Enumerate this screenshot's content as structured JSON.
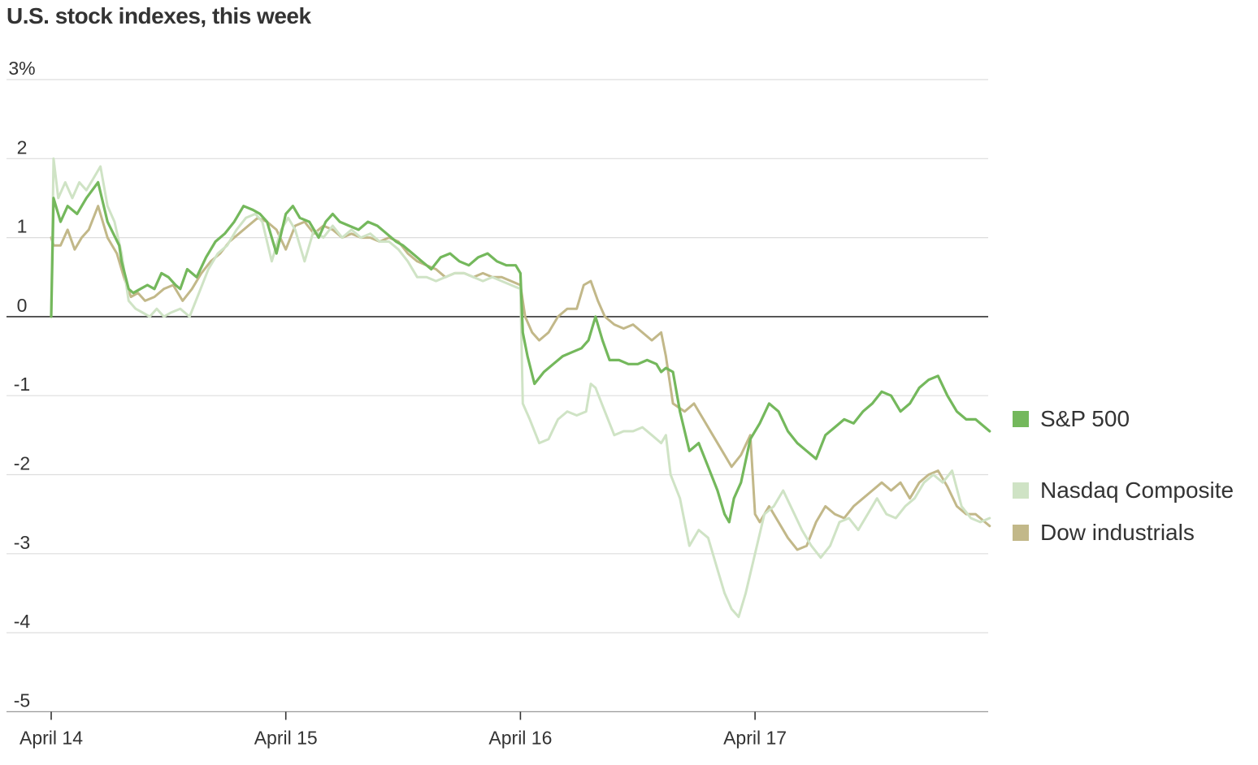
{
  "title": "U.S. stock indexes, this week",
  "chart_data": {
    "type": "line",
    "title": "U.S. stock indexes, this week",
    "xlabel": "",
    "ylabel": "",
    "ylim": [
      -5,
      3
    ],
    "yticks": [
      3,
      2,
      1,
      0,
      -1,
      -2,
      -3,
      -4,
      -5
    ],
    "ytick_labels": [
      "3%",
      "2",
      "1",
      "0",
      "-1",
      "-2",
      "-3",
      "-4",
      "-5"
    ],
    "xlim": [
      0,
      4
    ],
    "xticks": [
      0,
      1,
      2,
      3
    ],
    "xtick_labels": [
      "April 14",
      "April 15",
      "April 16",
      "April 17"
    ],
    "grid": true,
    "legend_position": "right",
    "series": [
      {
        "name": "S&P 500",
        "color": "#74b85c",
        "x": [
          0,
          0.01,
          0.04,
          0.07,
          0.11,
          0.15,
          0.2,
          0.24,
          0.29,
          0.3,
          0.33,
          0.35,
          0.38,
          0.41,
          0.44,
          0.47,
          0.5,
          0.53,
          0.55,
          0.58,
          0.62,
          0.66,
          0.7,
          0.74,
          0.78,
          0.82,
          0.86,
          0.89,
          0.92,
          0.96,
          1.0,
          1.03,
          1.06,
          1.1,
          1.14,
          1.17,
          1.2,
          1.23,
          1.27,
          1.31,
          1.35,
          1.39,
          1.43,
          1.47,
          1.5,
          1.54,
          1.58,
          1.62,
          1.66,
          1.7,
          1.74,
          1.78,
          1.82,
          1.86,
          1.9,
          1.94,
          1.98,
          2.0,
          2.01,
          2.03,
          2.06,
          2.1,
          2.14,
          2.18,
          2.22,
          2.26,
          2.29,
          2.32,
          2.35,
          2.38,
          2.42,
          2.46,
          2.5,
          2.54,
          2.58,
          2.6,
          2.62,
          2.65,
          2.68,
          2.72,
          2.76,
          2.8,
          2.84,
          2.87,
          2.89,
          2.91,
          2.94,
          2.98,
          3.02,
          3.06,
          3.1,
          3.14,
          3.18,
          3.22,
          3.26,
          3.3,
          3.34,
          3.38,
          3.42,
          3.46,
          3.5,
          3.54,
          3.58,
          3.62,
          3.66,
          3.7,
          3.74,
          3.78,
          3.82,
          3.86,
          3.9,
          3.94,
          3.98,
          4.0
        ],
        "values": [
          0,
          1.5,
          1.2,
          1.4,
          1.3,
          1.5,
          1.7,
          1.2,
          0.9,
          0.7,
          0.35,
          0.3,
          0.35,
          0.4,
          0.35,
          0.55,
          0.5,
          0.4,
          0.35,
          0.6,
          0.5,
          0.75,
          0.95,
          1.05,
          1.2,
          1.4,
          1.35,
          1.3,
          1.2,
          0.8,
          1.3,
          1.4,
          1.25,
          1.2,
          1.0,
          1.2,
          1.3,
          1.2,
          1.15,
          1.1,
          1.2,
          1.15,
          1.05,
          0.95,
          0.9,
          0.8,
          0.7,
          0.6,
          0.75,
          0.8,
          0.7,
          0.65,
          0.75,
          0.8,
          0.7,
          0.65,
          0.65,
          0.55,
          -0.2,
          -0.5,
          -0.85,
          -0.7,
          -0.6,
          -0.5,
          -0.45,
          -0.4,
          -0.3,
          0.0,
          -0.3,
          -0.55,
          -0.55,
          -0.6,
          -0.6,
          -0.55,
          -0.6,
          -0.7,
          -0.65,
          -0.7,
          -1.2,
          -1.7,
          -1.6,
          -1.9,
          -2.2,
          -2.5,
          -2.6,
          -2.3,
          -2.1,
          -1.55,
          -1.35,
          -1.1,
          -1.2,
          -1.45,
          -1.6,
          -1.7,
          -1.8,
          -1.5,
          -1.4,
          -1.3,
          -1.35,
          -1.2,
          -1.1,
          -0.95,
          -1.0,
          -1.2,
          -1.1,
          -0.9,
          -0.8,
          -0.75,
          -1.0,
          -1.2,
          -1.3,
          -1.3,
          -1.4,
          -1.45
        ]
      },
      {
        "name": "Nasdaq Composite",
        "color": "#cfe3c5",
        "x": [
          0,
          0.01,
          0.03,
          0.06,
          0.09,
          0.12,
          0.15,
          0.18,
          0.21,
          0.24,
          0.27,
          0.3,
          0.33,
          0.36,
          0.39,
          0.42,
          0.45,
          0.48,
          0.51,
          0.55,
          0.59,
          0.63,
          0.67,
          0.71,
          0.75,
          0.79,
          0.83,
          0.87,
          0.9,
          0.94,
          0.98,
          1.01,
          1.04,
          1.08,
          1.12,
          1.16,
          1.2,
          1.24,
          1.28,
          1.32,
          1.36,
          1.4,
          1.44,
          1.48,
          1.52,
          1.56,
          1.6,
          1.64,
          1.68,
          1.72,
          1.76,
          1.8,
          1.84,
          1.88,
          1.92,
          1.96,
          2.0,
          2.01,
          2.04,
          2.08,
          2.12,
          2.16,
          2.2,
          2.24,
          2.28,
          2.3,
          2.32,
          2.36,
          2.4,
          2.44,
          2.48,
          2.52,
          2.56,
          2.6,
          2.62,
          2.64,
          2.68,
          2.72,
          2.76,
          2.8,
          2.84,
          2.87,
          2.9,
          2.93,
          2.96,
          3.0,
          3.04,
          3.08,
          3.12,
          3.16,
          3.2,
          3.24,
          3.28,
          3.32,
          3.36,
          3.4,
          3.44,
          3.48,
          3.52,
          3.56,
          3.6,
          3.64,
          3.68,
          3.72,
          3.76,
          3.8,
          3.84,
          3.88,
          3.92,
          3.96,
          4.0
        ],
        "values": [
          0,
          2.0,
          1.5,
          1.7,
          1.5,
          1.7,
          1.6,
          1.75,
          1.9,
          1.4,
          1.2,
          0.8,
          0.2,
          0.1,
          0.05,
          0.0,
          0.1,
          0.0,
          0.05,
          0.1,
          0.0,
          0.3,
          0.6,
          0.8,
          0.9,
          1.1,
          1.25,
          1.3,
          1.2,
          0.7,
          1.1,
          1.25,
          1.1,
          0.7,
          1.1,
          1.0,
          1.15,
          1.0,
          1.1,
          1.0,
          1.05,
          0.95,
          0.95,
          0.85,
          0.7,
          0.5,
          0.5,
          0.45,
          0.5,
          0.55,
          0.55,
          0.5,
          0.45,
          0.5,
          0.45,
          0.4,
          0.35,
          -1.1,
          -1.3,
          -1.6,
          -1.55,
          -1.3,
          -1.2,
          -1.25,
          -1.2,
          -0.85,
          -0.9,
          -1.2,
          -1.5,
          -1.45,
          -1.45,
          -1.4,
          -1.5,
          -1.6,
          -1.5,
          -2.0,
          -2.3,
          -2.9,
          -2.7,
          -2.8,
          -3.2,
          -3.5,
          -3.7,
          -3.8,
          -3.5,
          -3.0,
          -2.5,
          -2.4,
          -2.2,
          -2.45,
          -2.7,
          -2.9,
          -3.05,
          -2.9,
          -2.6,
          -2.55,
          -2.7,
          -2.5,
          -2.3,
          -2.5,
          -2.55,
          -2.4,
          -2.3,
          -2.1,
          -2.0,
          -2.1,
          -1.95,
          -2.4,
          -2.55,
          -2.6,
          -2.55
        ]
      },
      {
        "name": "Dow industrials",
        "color": "#c2b889",
        "x": [
          0,
          0.01,
          0.04,
          0.07,
          0.1,
          0.13,
          0.16,
          0.2,
          0.24,
          0.28,
          0.31,
          0.34,
          0.37,
          0.4,
          0.44,
          0.48,
          0.52,
          0.56,
          0.6,
          0.64,
          0.68,
          0.72,
          0.76,
          0.8,
          0.84,
          0.88,
          0.92,
          0.96,
          1.0,
          1.04,
          1.08,
          1.12,
          1.16,
          1.2,
          1.24,
          1.28,
          1.32,
          1.36,
          1.4,
          1.44,
          1.48,
          1.52,
          1.56,
          1.6,
          1.64,
          1.68,
          1.72,
          1.76,
          1.8,
          1.84,
          1.88,
          1.92,
          1.96,
          2.0,
          2.02,
          2.05,
          2.08,
          2.12,
          2.16,
          2.2,
          2.24,
          2.27,
          2.3,
          2.33,
          2.36,
          2.4,
          2.44,
          2.48,
          2.52,
          2.56,
          2.6,
          2.62,
          2.65,
          2.7,
          2.74,
          2.78,
          2.82,
          2.86,
          2.9,
          2.94,
          2.98,
          3.0,
          3.02,
          3.06,
          3.1,
          3.14,
          3.18,
          3.22,
          3.26,
          3.3,
          3.34,
          3.38,
          3.42,
          3.46,
          3.5,
          3.54,
          3.58,
          3.62,
          3.66,
          3.7,
          3.74,
          3.78,
          3.82,
          3.86,
          3.9,
          3.94,
          3.98,
          4.0
        ],
        "values": [
          1.0,
          0.9,
          0.9,
          1.1,
          0.85,
          1.0,
          1.1,
          1.4,
          1.0,
          0.8,
          0.5,
          0.25,
          0.3,
          0.2,
          0.25,
          0.35,
          0.4,
          0.2,
          0.35,
          0.55,
          0.7,
          0.8,
          0.95,
          1.05,
          1.15,
          1.25,
          1.2,
          1.1,
          0.85,
          1.15,
          1.2,
          1.05,
          1.15,
          1.1,
          1.0,
          1.05,
          1.0,
          1.0,
          0.95,
          1.0,
          0.95,
          0.8,
          0.7,
          0.65,
          0.6,
          0.5,
          0.55,
          0.55,
          0.5,
          0.55,
          0.5,
          0.5,
          0.45,
          0.4,
          0.0,
          -0.2,
          -0.3,
          -0.2,
          0.0,
          0.1,
          0.1,
          0.4,
          0.45,
          0.2,
          0.0,
          -0.1,
          -0.15,
          -0.1,
          -0.2,
          -0.3,
          -0.2,
          -0.5,
          -1.1,
          -1.2,
          -1.1,
          -1.3,
          -1.5,
          -1.7,
          -1.9,
          -1.75,
          -1.5,
          -2.5,
          -2.6,
          -2.4,
          -2.6,
          -2.8,
          -2.95,
          -2.9,
          -2.6,
          -2.4,
          -2.5,
          -2.55,
          -2.4,
          -2.3,
          -2.2,
          -2.1,
          -2.2,
          -2.1,
          -2.3,
          -2.1,
          -2.0,
          -1.95,
          -2.15,
          -2.4,
          -2.5,
          -2.5,
          -2.6,
          -2.65
        ]
      }
    ]
  }
}
